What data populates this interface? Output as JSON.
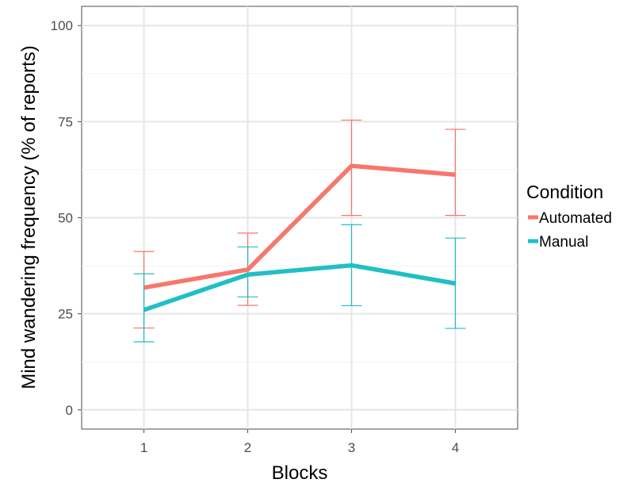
{
  "chart_data": {
    "type": "line",
    "title": "",
    "xlabel": "Blocks",
    "ylabel": "Mind wandering frequency (% of reports)",
    "x": [
      1,
      2,
      3,
      4
    ],
    "x_tick_labels": [
      "1",
      "2",
      "3",
      "4"
    ],
    "y_ticks": [
      0,
      25,
      50,
      75,
      100
    ],
    "y_tick_labels": [
      "0",
      "25",
      "50",
      "75",
      "100"
    ],
    "xlim": [
      0.4,
      4.6
    ],
    "ylim": [
      -5,
      105
    ],
    "grid": true,
    "legend": {
      "title": "Condition",
      "position": "right"
    },
    "series": [
      {
        "name": "Automated",
        "color": "#F8766D",
        "values": [
          31.8,
          36.5,
          63.5,
          61.2
        ],
        "error_low": [
          21.3,
          27.2,
          50.6,
          50.6
        ],
        "error_high": [
          41.2,
          46.0,
          75.4,
          73.0
        ]
      },
      {
        "name": "Manual",
        "color": "#21BFC4",
        "values": [
          26.0,
          35.2,
          37.6,
          32.9
        ],
        "error_low": [
          17.7,
          29.4,
          27.1,
          21.2
        ],
        "error_high": [
          35.4,
          42.4,
          48.2,
          44.7
        ]
      }
    ]
  }
}
